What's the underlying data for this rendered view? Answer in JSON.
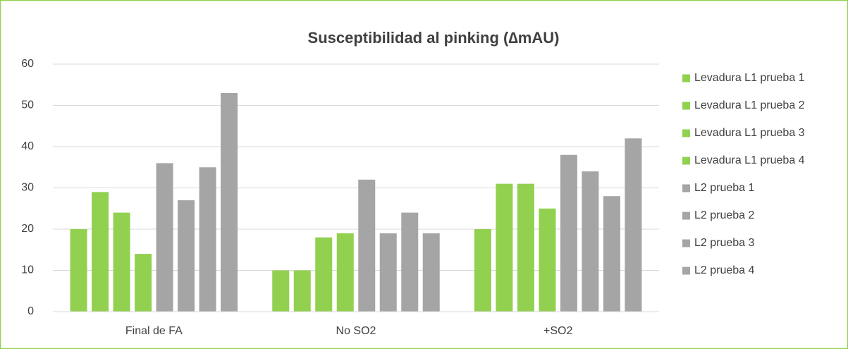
{
  "chart_data": {
    "type": "bar",
    "title": "Susceptibilidad al pinking (∆mAU)",
    "categories": [
      "Final de FA",
      "No SO2",
      "+SO2"
    ],
    "series": [
      {
        "name": "Levadura L1 prueba 1",
        "color": "#92d050",
        "values": [
          20,
          10,
          20
        ]
      },
      {
        "name": "Levadura L1 prueba 2",
        "color": "#92d050",
        "values": [
          29,
          10,
          31
        ]
      },
      {
        "name": "Levadura L1 prueba 3",
        "color": "#92d050",
        "values": [
          24,
          18,
          31
        ]
      },
      {
        "name": "Levadura L1 prueba 4",
        "color": "#92d050",
        "values": [
          14,
          19,
          25
        ]
      },
      {
        "name": "L2 prueba 1",
        "color": "#a5a5a5",
        "values": [
          36,
          32,
          38
        ]
      },
      {
        "name": "L2 prueba 2",
        "color": "#a5a5a5",
        "values": [
          27,
          19,
          34
        ]
      },
      {
        "name": "L2 prueba 3",
        "color": "#a5a5a5",
        "values": [
          35,
          24,
          28
        ]
      },
      {
        "name": "L2 prueba 4",
        "color": "#a5a5a5",
        "values": [
          53,
          19,
          42
        ]
      }
    ],
    "ylim": [
      0,
      60
    ],
    "yticks": [
      0,
      10,
      20,
      30,
      40,
      50,
      60
    ],
    "grid": true,
    "legend": "right"
  }
}
